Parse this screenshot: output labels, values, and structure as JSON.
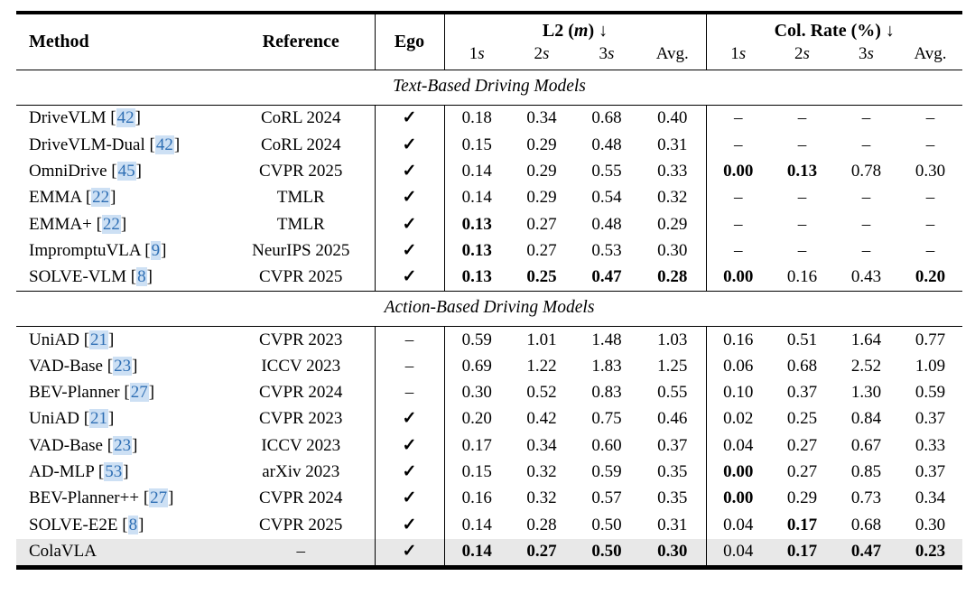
{
  "colors": {
    "citation_text": "#2f6fb4",
    "citation_background": "#cde0f4",
    "highlight_row": "#e8e8e8",
    "rule": "#000000"
  },
  "table": {
    "header": {
      "method": "Method",
      "reference": "Reference",
      "ego": "Ego",
      "groups": [
        {
          "name": "L2",
          "unit": "(m)",
          "arrow": "↓"
        },
        {
          "name": "Col. Rate",
          "unit": "(%)",
          "arrow": "↓"
        }
      ],
      "sub_labels": [
        "1s",
        "2s",
        "3s",
        "Avg."
      ]
    },
    "sections": [
      {
        "title": "Text-Based Driving Models",
        "rows": [
          {
            "method": "DriveVLM",
            "cite": "42",
            "ref": "CoRL 2024",
            "ego": "✓",
            "highlight": false,
            "l2": [
              "0.18",
              "0.34",
              "0.68",
              "0.40"
            ],
            "l2_bold": [
              false,
              false,
              false,
              false
            ],
            "cr": [
              "–",
              "–",
              "–",
              "–"
            ],
            "cr_bold": [
              false,
              false,
              false,
              false
            ]
          },
          {
            "method": "DriveVLM-Dual",
            "cite": "42",
            "ref": "CoRL 2024",
            "ego": "✓",
            "highlight": false,
            "l2": [
              "0.15",
              "0.29",
              "0.48",
              "0.31"
            ],
            "l2_bold": [
              false,
              false,
              false,
              false
            ],
            "cr": [
              "–",
              "–",
              "–",
              "–"
            ],
            "cr_bold": [
              false,
              false,
              false,
              false
            ]
          },
          {
            "method": "OmniDrive",
            "cite": "45",
            "ref": "CVPR 2025",
            "ego": "✓",
            "highlight": false,
            "l2": [
              "0.14",
              "0.29",
              "0.55",
              "0.33"
            ],
            "l2_bold": [
              false,
              false,
              false,
              false
            ],
            "cr": [
              "0.00",
              "0.13",
              "0.78",
              "0.30"
            ],
            "cr_bold": [
              true,
              true,
              false,
              false
            ]
          },
          {
            "method": "EMMA",
            "cite": "22",
            "ref": "TMLR",
            "ego": "✓",
            "highlight": false,
            "l2": [
              "0.14",
              "0.29",
              "0.54",
              "0.32"
            ],
            "l2_bold": [
              false,
              false,
              false,
              false
            ],
            "cr": [
              "–",
              "–",
              "–",
              "–"
            ],
            "cr_bold": [
              false,
              false,
              false,
              false
            ]
          },
          {
            "method": "EMMA+",
            "cite": "22",
            "ref": "TMLR",
            "ego": "✓",
            "highlight": false,
            "l2": [
              "0.13",
              "0.27",
              "0.48",
              "0.29"
            ],
            "l2_bold": [
              true,
              false,
              false,
              false
            ],
            "cr": [
              "–",
              "–",
              "–",
              "–"
            ],
            "cr_bold": [
              false,
              false,
              false,
              false
            ]
          },
          {
            "method": "ImpromptuVLA",
            "cite": "9",
            "ref": "NeurIPS 2025",
            "ego": "✓",
            "highlight": false,
            "l2": [
              "0.13",
              "0.27",
              "0.53",
              "0.30"
            ],
            "l2_bold": [
              true,
              false,
              false,
              false
            ],
            "cr": [
              "–",
              "–",
              "–",
              "–"
            ],
            "cr_bold": [
              false,
              false,
              false,
              false
            ]
          },
          {
            "method": "SOLVE-VLM",
            "cite": "8",
            "ref": "CVPR 2025",
            "ego": "✓",
            "highlight": false,
            "l2": [
              "0.13",
              "0.25",
              "0.47",
              "0.28"
            ],
            "l2_bold": [
              true,
              true,
              true,
              true
            ],
            "cr": [
              "0.00",
              "0.16",
              "0.43",
              "0.20"
            ],
            "cr_bold": [
              true,
              false,
              false,
              true
            ]
          }
        ]
      },
      {
        "title": "Action-Based Driving Models",
        "rows": [
          {
            "method": "UniAD",
            "cite": "21",
            "ref": "CVPR 2023",
            "ego": "–",
            "highlight": false,
            "l2": [
              "0.59",
              "1.01",
              "1.48",
              "1.03"
            ],
            "l2_bold": [
              false,
              false,
              false,
              false
            ],
            "cr": [
              "0.16",
              "0.51",
              "1.64",
              "0.77"
            ],
            "cr_bold": [
              false,
              false,
              false,
              false
            ]
          },
          {
            "method": "VAD-Base",
            "cite": "23",
            "ref": "ICCV 2023",
            "ego": "–",
            "highlight": false,
            "l2": [
              "0.69",
              "1.22",
              "1.83",
              "1.25"
            ],
            "l2_bold": [
              false,
              false,
              false,
              false
            ],
            "cr": [
              "0.06",
              "0.68",
              "2.52",
              "1.09"
            ],
            "cr_bold": [
              false,
              false,
              false,
              false
            ]
          },
          {
            "method": "BEV-Planner",
            "cite": "27",
            "ref": "CVPR 2024",
            "ego": "–",
            "highlight": false,
            "l2": [
              "0.30",
              "0.52",
              "0.83",
              "0.55"
            ],
            "l2_bold": [
              false,
              false,
              false,
              false
            ],
            "cr": [
              "0.10",
              "0.37",
              "1.30",
              "0.59"
            ],
            "cr_bold": [
              false,
              false,
              false,
              false
            ]
          },
          {
            "method": "UniAD",
            "cite": "21",
            "ref": "CVPR 2023",
            "ego": "✓",
            "highlight": false,
            "l2": [
              "0.20",
              "0.42",
              "0.75",
              "0.46"
            ],
            "l2_bold": [
              false,
              false,
              false,
              false
            ],
            "cr": [
              "0.02",
              "0.25",
              "0.84",
              "0.37"
            ],
            "cr_bold": [
              false,
              false,
              false,
              false
            ]
          },
          {
            "method": "VAD-Base",
            "cite": "23",
            "ref": "ICCV 2023",
            "ego": "✓",
            "highlight": false,
            "l2": [
              "0.17",
              "0.34",
              "0.60",
              "0.37"
            ],
            "l2_bold": [
              false,
              false,
              false,
              false
            ],
            "cr": [
              "0.04",
              "0.27",
              "0.67",
              "0.33"
            ],
            "cr_bold": [
              false,
              false,
              false,
              false
            ]
          },
          {
            "method": "AD-MLP",
            "cite": "53",
            "ref": "arXiv 2023",
            "ego": "✓",
            "highlight": false,
            "l2": [
              "0.15",
              "0.32",
              "0.59",
              "0.35"
            ],
            "l2_bold": [
              false,
              false,
              false,
              false
            ],
            "cr": [
              "0.00",
              "0.27",
              "0.85",
              "0.37"
            ],
            "cr_bold": [
              true,
              false,
              false,
              false
            ]
          },
          {
            "method": "BEV-Planner++",
            "cite": "27",
            "ref": "CVPR 2024",
            "ego": "✓",
            "highlight": false,
            "l2": [
              "0.16",
              "0.32",
              "0.57",
              "0.35"
            ],
            "l2_bold": [
              false,
              false,
              false,
              false
            ],
            "cr": [
              "0.00",
              "0.29",
              "0.73",
              "0.34"
            ],
            "cr_bold": [
              true,
              false,
              false,
              false
            ]
          },
          {
            "method": "SOLVE-E2E",
            "cite": "8",
            "ref": "CVPR 2025",
            "ego": "✓",
            "highlight": false,
            "l2": [
              "0.14",
              "0.28",
              "0.50",
              "0.31"
            ],
            "l2_bold": [
              false,
              false,
              false,
              false
            ],
            "cr": [
              "0.04",
              "0.17",
              "0.68",
              "0.30"
            ],
            "cr_bold": [
              false,
              true,
              false,
              false
            ]
          },
          {
            "method": "ColaVLA",
            "cite": null,
            "ref": "–",
            "ego": "✓",
            "highlight": true,
            "l2": [
              "0.14",
              "0.27",
              "0.50",
              "0.30"
            ],
            "l2_bold": [
              true,
              true,
              true,
              true
            ],
            "cr": [
              "0.04",
              "0.17",
              "0.47",
              "0.23"
            ],
            "cr_bold": [
              false,
              true,
              true,
              true
            ]
          }
        ]
      }
    ]
  }
}
